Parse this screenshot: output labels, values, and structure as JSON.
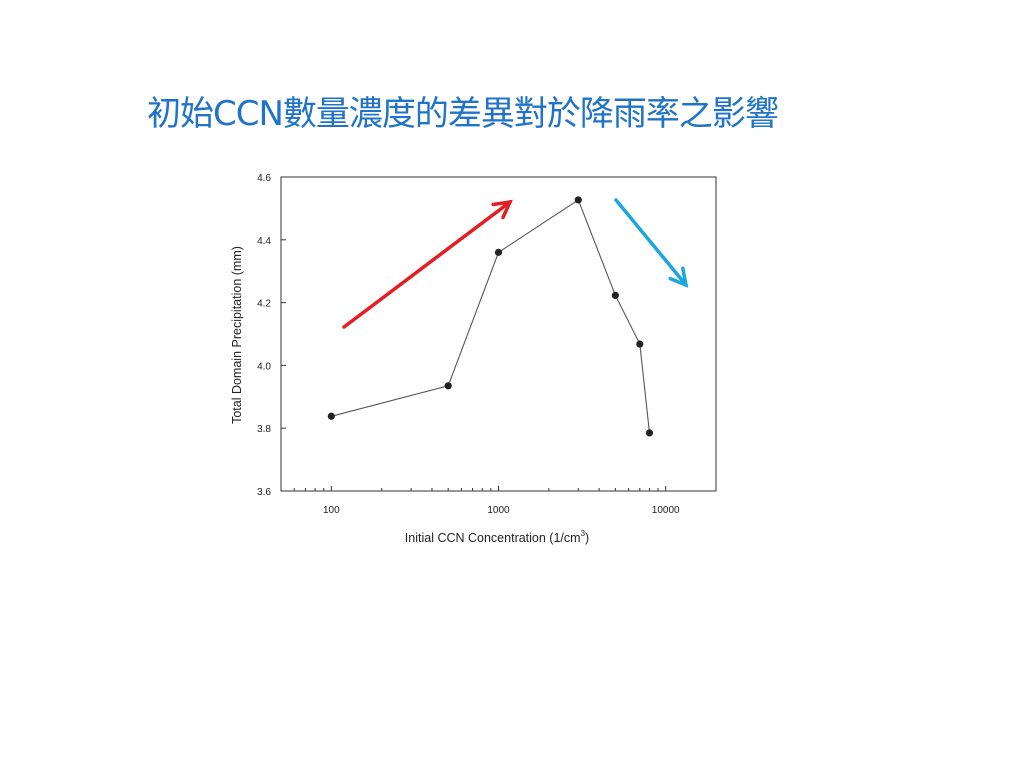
{
  "slide": {
    "title": "初始CCN數量濃度的差異對於降雨率之影響"
  },
  "chart_data": {
    "type": "line",
    "xlabel": "Initial CCN Concentration (1/cm",
    "xlabel_sup": "3",
    "xlabel_end": ")",
    "ylabel": "Total Domain Precipitation (mm)",
    "x_scale": "log",
    "xlim": [
      50,
      20000
    ],
    "ylim": [
      3.6,
      4.6
    ],
    "x_ticks": [
      100,
      1000,
      10000
    ],
    "x_tick_labels": [
      "100",
      "1000",
      "10000"
    ],
    "y_ticks": [
      3.6,
      3.8,
      4.0,
      4.2,
      4.4,
      4.6
    ],
    "y_tick_labels": [
      "3.6",
      "3.8",
      "4.0",
      "4.2",
      "4.4",
      "4.6"
    ],
    "grid": false,
    "series": [
      {
        "x": [
          100,
          500,
          1000,
          3000,
          5000,
          7000,
          8000
        ],
        "y": [
          3.838,
          3.935,
          4.36,
          4.527,
          4.223,
          4.068,
          3.785
        ],
        "color": "#222222"
      }
    ],
    "annotations": [
      {
        "type": "arrow",
        "meaning": "increasing",
        "color": "#e31e24"
      },
      {
        "type": "arrow",
        "meaning": "decreasing",
        "color": "#1ba6e0"
      }
    ]
  }
}
